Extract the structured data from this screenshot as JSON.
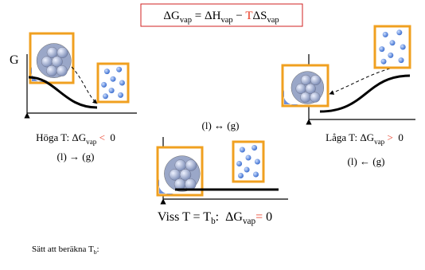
{
  "equation": {
    "parts": [
      "ΔG",
      "vap",
      " = ΔH",
      "vap",
      " − ",
      "T",
      "ΔS",
      "vap"
    ]
  },
  "left": {
    "axis_label": "G",
    "condition": [
      "Höga T: ΔG",
      "vap",
      " < ",
      " 0"
    ],
    "reaction": "(l) → (g)"
  },
  "middle": {
    "reaction": "(l) ↔ (g)",
    "condition": [
      "Viss T = T",
      "b",
      ":  ΔG",
      "vap",
      "=",
      " 0"
    ]
  },
  "right": {
    "condition": [
      "Låga T: ΔG",
      "vap",
      " > ",
      " 0"
    ],
    "reaction": "(l) ← (g)"
  },
  "footer": {
    "text": [
      "Sätt att beräkna T",
      "b",
      ":"
    ]
  }
}
